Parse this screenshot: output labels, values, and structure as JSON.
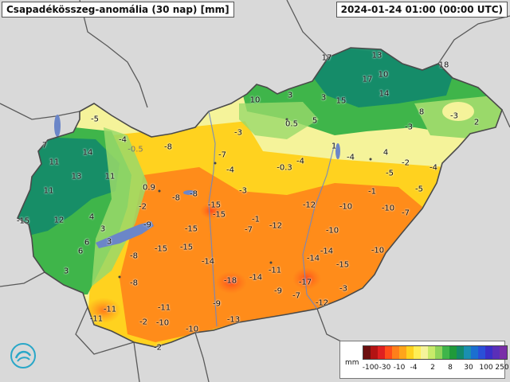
{
  "header": {
    "title": "Csapadékösszeg-anomália (30 nap) [mm]",
    "timestamp": "2024-01-24 01:00 (00:00 UTC)"
  },
  "map": {
    "colors": {
      "background": "#d9d9d9",
      "country_border": "#5a5a5a",
      "dark_green": "#138a6a",
      "green": "#3fb54a",
      "light_green": "#9ad96a",
      "pale_yellow": "#f5f39a",
      "yellow": "#ffd21f",
      "orange": "#ff8c1a",
      "red_orange": "#ff6a1a",
      "water": "#6b86c8"
    },
    "labels": [
      {
        "text": "-5"
      },
      {
        "text": "7"
      },
      {
        "text": "-4"
      },
      {
        "text": "-0.5"
      },
      {
        "text": "14"
      },
      {
        "text": "-8"
      },
      {
        "text": "11"
      },
      {
        "text": "13"
      },
      {
        "text": "11"
      },
      {
        "text": "11"
      },
      {
        "text": "-7"
      },
      {
        "text": "-4"
      },
      {
        "text": "0.9"
      },
      {
        "text": "-3"
      },
      {
        "text": "-8"
      },
      {
        "text": "4"
      },
      {
        "text": "-2"
      },
      {
        "text": "12"
      },
      {
        "text": "-15"
      },
      {
        "text": "-9"
      },
      {
        "text": "3"
      },
      {
        "text": "-15"
      },
      {
        "text": "-15"
      },
      {
        "text": "-1"
      },
      {
        "text": "-7"
      },
      {
        "text": "-12"
      },
      {
        "text": "6"
      },
      {
        "text": "3"
      },
      {
        "text": "6"
      },
      {
        "text": "-15"
      },
      {
        "text": "-15"
      },
      {
        "text": "-8"
      },
      {
        "text": "-14"
      },
      {
        "text": "3"
      },
      {
        "text": "-8"
      },
      {
        "text": "-18"
      },
      {
        "text": "-14"
      },
      {
        "text": "-11"
      },
      {
        "text": "-17"
      },
      {
        "text": "-11"
      },
      {
        "text": "-11"
      },
      {
        "text": "-9"
      },
      {
        "text": "-9"
      },
      {
        "text": "-7"
      },
      {
        "text": "-11"
      },
      {
        "text": "-2"
      },
      {
        "text": "-10"
      },
      {
        "text": "-10"
      },
      {
        "text": "-13"
      },
      {
        "text": "-12"
      },
      {
        "text": "-2"
      },
      {
        "text": "-8"
      },
      {
        "text": "-3"
      },
      {
        "text": "10"
      },
      {
        "text": "3"
      },
      {
        "text": "3"
      },
      {
        "text": "15"
      },
      {
        "text": "17"
      },
      {
        "text": "13"
      },
      {
        "text": "17"
      },
      {
        "text": "10"
      },
      {
        "text": "18"
      },
      {
        "text": "14"
      },
      {
        "text": "0.5"
      },
      {
        "text": "5"
      },
      {
        "text": "8"
      },
      {
        "text": "-3"
      },
      {
        "text": "-3"
      },
      {
        "text": "2"
      },
      {
        "text": "1"
      },
      {
        "text": "4"
      },
      {
        "text": "-2"
      },
      {
        "text": "-4"
      },
      {
        "text": "-0.3"
      },
      {
        "text": "-4"
      },
      {
        "text": "-5"
      },
      {
        "text": "-4"
      },
      {
        "text": "-5"
      },
      {
        "text": "-1"
      },
      {
        "text": "-12"
      },
      {
        "text": "-10"
      },
      {
        "text": "-10"
      },
      {
        "text": "-7"
      },
      {
        "text": "-10"
      },
      {
        "text": "-14"
      },
      {
        "text": "-14"
      },
      {
        "text": "-15"
      },
      {
        "text": "-10"
      },
      {
        "text": "-3"
      },
      {
        "text": "-15"
      }
    ]
  },
  "legend": {
    "unit": "mm",
    "swatches": [
      "#6d0f0f",
      "#b31313",
      "#e02020",
      "#ff4d1a",
      "#ff7f1a",
      "#ffa51a",
      "#ffd21f",
      "#ffee55",
      "#f5f39a",
      "#c8ea6a",
      "#8fd45a",
      "#3fb54a",
      "#1f9a3a",
      "#138a6a",
      "#1a8fb0",
      "#1a6fd0",
      "#2a4fd8",
      "#3a2fc8",
      "#5a2fb8",
      "#7a2fa8"
    ],
    "ticks": [
      "-100",
      "-30",
      "-10",
      "-4",
      "2",
      "8",
      "30",
      "100",
      "250"
    ]
  }
}
